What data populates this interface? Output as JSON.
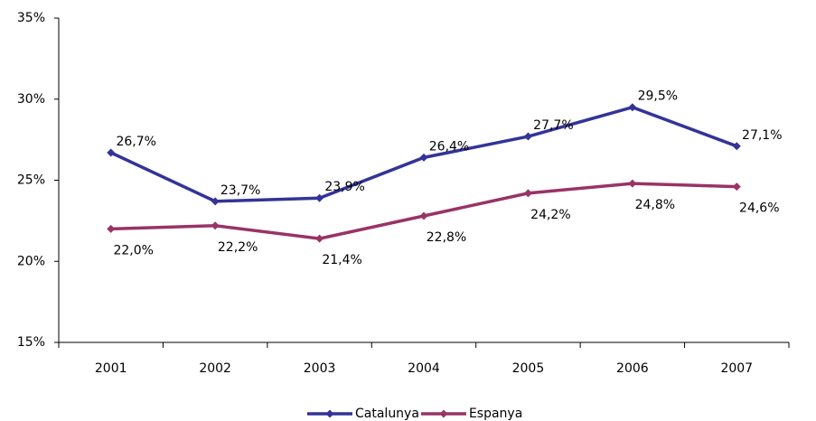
{
  "chart_data": {
    "type": "line",
    "categories": [
      "2001",
      "2002",
      "2003",
      "2004",
      "2005",
      "2006",
      "2007"
    ],
    "series": [
      {
        "name": "Catalunya",
        "color": "#333399",
        "values": [
          26.7,
          23.7,
          23.9,
          26.4,
          27.7,
          29.5,
          27.1
        ],
        "value_labels": [
          "26,7%",
          "23,7%",
          "23,9%",
          "26,4%",
          "27,7%",
          "29,5%",
          "27,1%"
        ]
      },
      {
        "name": "Espanya",
        "color": "#993366",
        "values": [
          22.0,
          22.2,
          21.4,
          22.8,
          24.2,
          24.8,
          24.6
        ],
        "value_labels": [
          "22,0%",
          "22,2%",
          "21,4%",
          "22,8%",
          "24,2%",
          "24,8%",
          "24,6%"
        ]
      }
    ],
    "ylim": [
      15,
      35
    ],
    "yticks": [
      {
        "value": 15,
        "label": "15%"
      },
      {
        "value": 20,
        "label": "20%"
      },
      {
        "value": 25,
        "label": "25%"
      },
      {
        "value": 30,
        "label": "30%"
      },
      {
        "value": 35,
        "label": "35%"
      }
    ],
    "grid": false,
    "legend": "bottom"
  }
}
